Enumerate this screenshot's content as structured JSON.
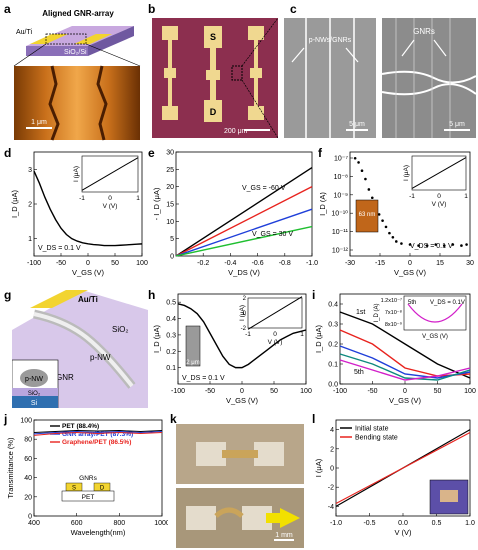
{
  "panel_labels": [
    "a",
    "b",
    "c",
    "d",
    "e",
    "f",
    "g",
    "h",
    "i",
    "j",
    "k",
    "l"
  ],
  "a": {
    "title": "Aligned GNR-array",
    "metal": "Au/Ti",
    "substrate": "SiO₂/Si",
    "scale": "1 μm"
  },
  "b": {
    "source": "S",
    "drain": "D",
    "scale": "200 μm"
  },
  "c": {
    "left_label": "p-NWs/GNRs",
    "right_label": "GNRs",
    "scale_left": "5 μm",
    "scale_right": "5 μm"
  },
  "g": {
    "metal": "Au/Ti",
    "oxide": "SiO₂",
    "wire": "p-NW",
    "ribbon": "GNR",
    "inset_wire": "p-NW",
    "inset_oxide": "SiO₂",
    "inset_si": "Si"
  },
  "h": {
    "scale": "2 μm"
  },
  "k": {
    "scale": "1 mm"
  },
  "f": {
    "inset_scale": "63 nm"
  },
  "chart_data": [
    {
      "id": "d",
      "type": "line",
      "xlabel": "V_GS (V)",
      "ylabel": "I_D (μA)",
      "xlim": [
        -100,
        100
      ],
      "ylim": [
        0.5,
        3.5
      ],
      "xticks": [
        "-100",
        "-50",
        "0",
        "50",
        "100"
      ],
      "yticks": [
        "1",
        "2",
        "3"
      ],
      "annotation": "V_DS = 0.1 V",
      "series": [
        {
          "x": [
            -100,
            -90,
            -80,
            -70,
            -60,
            -50,
            -40,
            -30,
            -20,
            -10,
            0,
            10,
            20,
            30,
            40,
            50,
            60,
            70,
            80,
            90,
            100
          ],
          "y": [
            2.95,
            2.6,
            2.2,
            1.85,
            1.55,
            1.3,
            1.12,
            1.0,
            0.93,
            0.88,
            0.85,
            0.83,
            0.82,
            0.8,
            0.8,
            0.8,
            0.81,
            0.82,
            0.83,
            0.84,
            0.85
          ]
        }
      ],
      "inset": {
        "xlabel": "V (V)",
        "ylabel": "I (μA)",
        "xlim": [
          -1,
          1
        ],
        "xticks": [
          "-1",
          "0",
          "1"
        ],
        "points": [
          [
            -1,
            -1
          ],
          [
            1,
            1
          ]
        ]
      }
    },
    {
      "id": "e",
      "type": "line",
      "xlabel": "V_DS (V)",
      "ylabel": "- I_D (μA)",
      "xlim": [
        0,
        -1.0
      ],
      "ylim": [
        0,
        30
      ],
      "xticks": [
        "-0.2",
        "-0.4",
        "-0.6",
        "-0.8",
        "-1.0"
      ],
      "yticks": [
        "0",
        "5",
        "10",
        "15",
        "20",
        "25",
        "30"
      ],
      "annotations": [
        "V_GS = -60 V",
        "V_GS = 30 V"
      ],
      "series": [
        {
          "name": "-60 V",
          "color": "#000000",
          "x": [
            0,
            -1.0
          ],
          "y": [
            0,
            25.5
          ]
        },
        {
          "name": "",
          "color": "#e8231e",
          "x": [
            0,
            -1.0
          ],
          "y": [
            0,
            20
          ]
        },
        {
          "name": "",
          "color": "#1f3fd9",
          "x": [
            0,
            -1.0
          ],
          "y": [
            0,
            13.5
          ]
        },
        {
          "name": "30 V",
          "color": "#1fbf30",
          "x": [
            0,
            -1.0
          ],
          "y": [
            0,
            8.5
          ]
        }
      ]
    },
    {
      "id": "f",
      "type": "scatter",
      "xlabel": "V_GS (V)",
      "ylabel": "I_D (A)",
      "xlim": [
        -35,
        35
      ],
      "ylim_log": [
        -12,
        -7
      ],
      "xticks": [
        "-30",
        "-15",
        "0",
        "15",
        "30"
      ],
      "yticks": [
        "10⁻⁷",
        "10⁻⁸",
        "10⁻⁹",
        "10⁻¹⁰",
        "10⁻¹¹",
        "10⁻¹²"
      ],
      "annotation": "V_DS = 0.1 V",
      "series": [
        {
          "x": [
            -32,
            -30,
            -28,
            -26,
            -24,
            -22,
            -20,
            -18,
            -16,
            -14,
            -12,
            -10,
            -8,
            -5,
            0,
            5,
            10,
            15,
            20,
            25,
            30,
            33
          ],
          "log_y": [
            -7.3,
            -7.5,
            -7.9,
            -8.3,
            -8.8,
            -9.2,
            -9.6,
            -10.0,
            -10.3,
            -10.6,
            -10.9,
            -11.1,
            -11.3,
            -11.4,
            -11.45,
            -11.5,
            -11.5,
            -11.45,
            -11.5,
            -11.45,
            -11.5,
            -11.45
          ]
        }
      ],
      "inset": {
        "xlabel": "V (V)",
        "ylabel": "I (μA)",
        "xlim": [
          -1,
          1
        ],
        "xticks": [
          "-1",
          "0",
          "1"
        ],
        "points": [
          [
            -1,
            -1
          ],
          [
            1,
            1
          ]
        ]
      }
    },
    {
      "id": "h",
      "type": "line",
      "xlabel": "V_GS (V)",
      "ylabel": "I_D (μA)",
      "xlim": [
        -100,
        100
      ],
      "ylim": [
        0,
        0.55
      ],
      "xticks": [
        "-100",
        "-50",
        "0",
        "50",
        "100"
      ],
      "yticks": [
        "0.1",
        "0.2",
        "0.3",
        "0.4",
        "0.5"
      ],
      "annotation": "V_DS = 0.1 V",
      "series": [
        {
          "x": [
            -100,
            -90,
            -80,
            -70,
            -60,
            -50,
            -40,
            -30,
            -20,
            -10,
            0,
            10,
            20,
            30,
            40,
            50,
            60,
            70,
            80,
            90,
            100
          ],
          "y": [
            0.49,
            0.48,
            0.46,
            0.43,
            0.38,
            0.31,
            0.24,
            0.17,
            0.12,
            0.1,
            0.1,
            0.12,
            0.15,
            0.18,
            0.21,
            0.24,
            0.27,
            0.29,
            0.31,
            0.32,
            0.33
          ]
        }
      ],
      "inset": {
        "xlabel": "V (V)",
        "ylabel": "I (μA)",
        "xlim": [
          -1,
          1
        ],
        "ylim": [
          -2,
          2
        ],
        "xticks": [
          "-1",
          "0",
          "1"
        ],
        "yticks": [
          "-2",
          "0",
          "2"
        ],
        "points": [
          [
            -1,
            -1.2
          ],
          [
            1,
            1.2
          ]
        ]
      }
    },
    {
      "id": "i",
      "type": "line",
      "xlabel": "V_GS (V)",
      "ylabel": "I_D (μA)",
      "xlim": [
        -100,
        100
      ],
      "ylim": [
        0,
        0.45
      ],
      "xticks": [
        "-100",
        "-50",
        "0",
        "50",
        "100"
      ],
      "yticks": [
        "0.0",
        "0.1",
        "0.2",
        "0.3",
        "0.4"
      ],
      "annotations": [
        "1st",
        "5th"
      ],
      "series": [
        {
          "name": "1st",
          "color": "#000000",
          "x": [
            -100,
            -50,
            0,
            50,
            100
          ],
          "y": [
            0.36,
            0.3,
            0.2,
            0.1,
            0.03
          ]
        },
        {
          "name": "",
          "color": "#e8231e",
          "x": [
            -100,
            -50,
            0,
            50,
            100
          ],
          "y": [
            0.27,
            0.2,
            0.08,
            0.04,
            0.05
          ]
        },
        {
          "name": "",
          "color": "#1f3fd9",
          "x": [
            -100,
            -50,
            0,
            50,
            100
          ],
          "y": [
            0.19,
            0.13,
            0.05,
            0.03,
            0.06
          ]
        },
        {
          "name": "",
          "color": "#0e8a7e",
          "x": [
            -100,
            -50,
            0,
            50,
            100
          ],
          "y": [
            0.15,
            0.1,
            0.03,
            0.02,
            0.07
          ]
        },
        {
          "name": "5th",
          "color": "#d21fc9",
          "x": [
            -100,
            -50,
            0,
            50,
            100
          ],
          "y": [
            0.12,
            0.07,
            0.02,
            0.04,
            0.08
          ]
        }
      ],
      "inset": {
        "label": "5th",
        "annotation": "V_DS = 0.1V",
        "xlabel": "V_GS (V)",
        "ylabel": "I_D (A)",
        "yticks": [
          "1.2x10⁻⁷",
          "7x10⁻⁸",
          "8x10⁻⁹"
        ],
        "color": "#d21fc9"
      }
    },
    {
      "id": "j",
      "type": "line",
      "xlabel": "Wavelength(nm)",
      "ylabel": "Transmittance (%)",
      "xlim": [
        400,
        1000
      ],
      "ylim": [
        0,
        100
      ],
      "xticks": [
        "400",
        "600",
        "800",
        "1000"
      ],
      "yticks": [
        "0",
        "20",
        "40",
        "60",
        "80",
        "100"
      ],
      "series": [
        {
          "name": "PET (88.4%)",
          "color": "#000000",
          "x": [
            400,
            500,
            600,
            700,
            800,
            900,
            1000
          ],
          "y": [
            87,
            88,
            89,
            88.5,
            89,
            88,
            89
          ]
        },
        {
          "name": "GNR array/PET (87.3%)",
          "color": "#1f3fd9",
          "x": [
            400,
            500,
            600,
            700,
            800,
            900,
            1000
          ],
          "y": [
            85.5,
            87,
            88,
            87,
            88,
            87,
            88
          ]
        },
        {
          "name": "Graphene/PET (86.5%)",
          "color": "#e8231e",
          "x": [
            400,
            500,
            600,
            700,
            800,
            900,
            1000
          ],
          "y": [
            84,
            86,
            87,
            86,
            87,
            86,
            87
          ]
        }
      ],
      "inset": {
        "top": "GNRs",
        "source": "S",
        "drain": "D",
        "substrate": "PET"
      }
    },
    {
      "id": "l",
      "type": "line",
      "xlabel": "V (V)",
      "ylabel": "I (μA)",
      "xlim": [
        -1.0,
        1.0
      ],
      "ylim": [
        -5,
        5
      ],
      "xticks": [
        "-1.0",
        "-0.5",
        "0.0",
        "0.5",
        "1.0"
      ],
      "yticks": [
        "-4",
        "-2",
        "0",
        "2",
        "4"
      ],
      "series": [
        {
          "name": "Initial state",
          "color": "#000000",
          "x": [
            -1,
            1
          ],
          "y": [
            -4.0,
            4.0
          ]
        },
        {
          "name": "Bending state",
          "color": "#e8231e",
          "x": [
            -1,
            1
          ],
          "y": [
            -3.7,
            3.7
          ]
        }
      ]
    }
  ]
}
